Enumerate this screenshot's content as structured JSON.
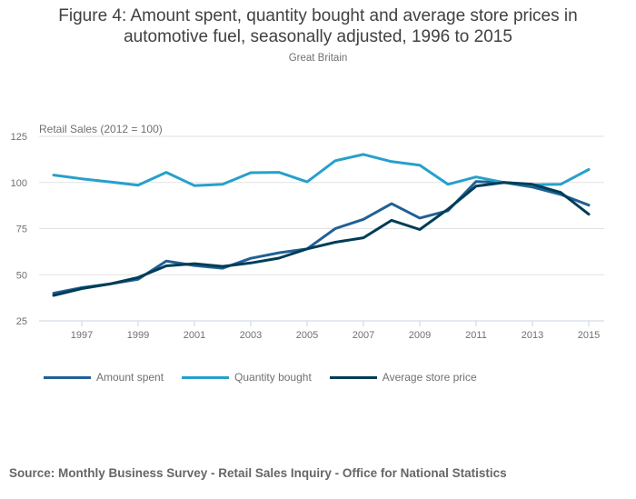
{
  "chart_data": {
    "type": "line",
    "title": "Figure 4: Amount spent, quantity bought and average store prices in automotive fuel, seasonally adjusted, 1996 to 2015",
    "title_line1": "Figure 4: Amount spent, quantity bought and average store prices in",
    "title_line2": "automotive fuel, seasonally adjusted, 1996 to 2015",
    "subtitle": "Great Britain",
    "xlabel": "",
    "ylabel": "Retail Sales (2012 = 100)",
    "ylim": [
      25,
      125
    ],
    "yticks": [
      25,
      50,
      75,
      100,
      125
    ],
    "xlim": [
      1996,
      2015
    ],
    "xticks": [
      1997,
      1999,
      2001,
      2003,
      2005,
      2007,
      2009,
      2011,
      2013,
      2015
    ],
    "x": [
      1996,
      1997,
      1998,
      1999,
      2000,
      2001,
      2002,
      2003,
      2004,
      2005,
      2006,
      2007,
      2008,
      2009,
      2010,
      2011,
      2012,
      2013,
      2014,
      2015
    ],
    "grid": true,
    "legend_position": "bottom-left",
    "series": [
      {
        "name": "Amount spent",
        "color": "#206095",
        "values": [
          40.0,
          43.0,
          45.0,
          47.5,
          57.4,
          55.0,
          53.5,
          58.9,
          61.9,
          64.0,
          75.0,
          80.0,
          88.5,
          80.7,
          84.7,
          100.5,
          100.0,
          97.5,
          93.5,
          87.7
        ]
      },
      {
        "name": "Quantity bought",
        "color": "#27a0cc",
        "values": [
          104.0,
          102.0,
          100.3,
          98.5,
          105.5,
          98.3,
          99.0,
          105.3,
          105.5,
          100.3,
          111.8,
          115.2,
          111.3,
          109.4,
          99.0,
          103.0,
          100.0,
          98.8,
          99.0,
          107.0
        ]
      },
      {
        "name": "Average store price",
        "color": "#003c57",
        "values": [
          38.8,
          42.5,
          45.0,
          48.5,
          54.8,
          56.0,
          54.5,
          56.4,
          59.0,
          64.0,
          67.6,
          70.0,
          79.5,
          74.5,
          85.5,
          98.0,
          100.0,
          99.0,
          94.6,
          82.8
        ]
      }
    ]
  },
  "source": "Source: Monthly Business Survey - Retail Sales Inquiry - Office for National Statistics"
}
